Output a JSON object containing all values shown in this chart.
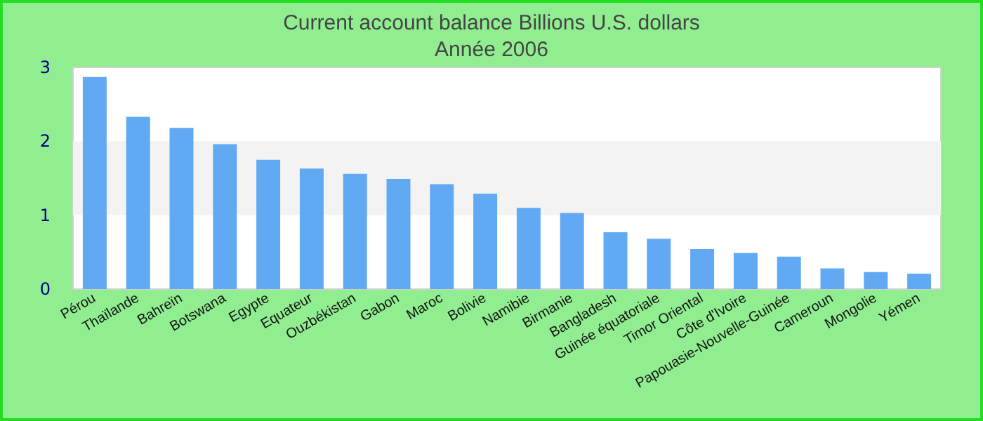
{
  "chart_data": {
    "type": "bar",
    "title": "Current account balance Billions U.S. dollars",
    "subtitle": "Année 2006",
    "categories": [
      "Pérou",
      "Thaïlande",
      "Bahreïn",
      "Botswana",
      "Egypte",
      "Equateur",
      "Ouzbékistan",
      "Gabon",
      "Maroc",
      "Bolivie",
      "Namibie",
      "Birmanie",
      "Bangladesh",
      "Guinée équatoriale",
      "Timor Oriental",
      "Côte d'Ivoire",
      "Papouasie-Nouvelle-Guinée",
      "Cameroun",
      "Mongolie",
      "Yémen"
    ],
    "values": [
      2.87,
      2.33,
      2.18,
      1.96,
      1.75,
      1.63,
      1.56,
      1.49,
      1.42,
      1.29,
      1.1,
      1.03,
      0.77,
      0.68,
      0.54,
      0.49,
      0.44,
      0.28,
      0.23,
      0.21
    ],
    "color": "#62a9f4",
    "ylim": [
      0,
      3
    ],
    "yticks": [
      0,
      1,
      2,
      3
    ],
    "bands": [
      {
        "axis": "y",
        "from": 1,
        "to": 2,
        "color": "#f3f3f3"
      }
    ]
  }
}
